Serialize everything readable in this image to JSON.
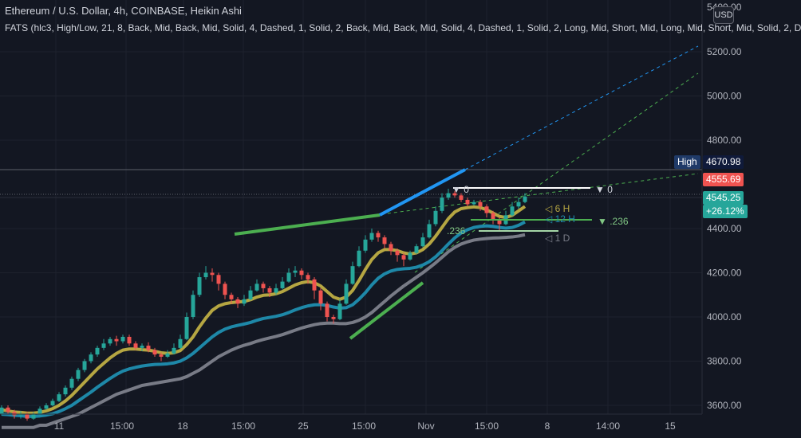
{
  "header": {
    "symbol_line": "Ethereum / U.S. Dollar, 4h, COINBASE, Heikin Ashi",
    "indicator_line": "FATS (hlc3, High/Low, 21, 8, Back, Mid, Back, Mid, Solid, 4, Dashed, 1, Solid, 2, Back, Mid, Back, Mid, Solid, 4, Dashed, 1, Solid, 2, Long, Mid, Short, Mid, Long, Mid, Short, Mid, Solid, 2, D"
  },
  "currency_button": "USD",
  "price_scale": {
    "labels": [
      "5200.00",
      "5000.00",
      "4800.00",
      "4400.00",
      "4200.00",
      "4000.00",
      "3800.00",
      "3600.00"
    ],
    "top_partial": "5400.00"
  },
  "time_axis": {
    "labels": [
      "11",
      "15:00",
      "18",
      "15:00",
      "25",
      "15:00",
      "Nov",
      "15:00",
      "8",
      "14:00",
      "15"
    ]
  },
  "price_tags": {
    "high_label": "High",
    "high_value": "4670.98",
    "prev_value": "4555.69",
    "last_value": "4545.25",
    "change_pct": "+26.12%"
  },
  "chart_labels": {
    "fib_0": "▼ 0",
    "fib_236": "▼ .236",
    "fib_236_left": ".236",
    "marker_0": "▼ 0",
    "tf_6h": "◁ 6 H",
    "tf_12h": "◁ 12 H",
    "tf_1d": "◁ 1 D"
  },
  "colors": {
    "background": "#131722",
    "up_candle": "#26a69a",
    "down_candle": "#ef5350",
    "ma_fast": "#b5a642",
    "ma_mid": "#1e88a8",
    "ma_slow": "#787b86",
    "trend_green": "#4caf50",
    "trend_blue": "#2196f3"
  },
  "chart_data": {
    "type": "candlestick",
    "timeframe": "4h",
    "y_axis_ticks": [
      3600,
      3800,
      4000,
      4200,
      4400,
      4800,
      5000,
      5200
    ],
    "ylim": [
      3590,
      5400
    ],
    "candles": [
      [
        3560,
        3590,
        3555,
        3600
      ],
      [
        3590,
        3570,
        3560,
        3600
      ],
      [
        3570,
        3555,
        3540,
        3580
      ],
      [
        3555,
        3560,
        3540,
        3575
      ],
      [
        3560,
        3540,
        3530,
        3570
      ],
      [
        3540,
        3560,
        3535,
        3570
      ],
      [
        3560,
        3585,
        3555,
        3595
      ],
      [
        3585,
        3600,
        3580,
        3610
      ],
      [
        3600,
        3620,
        3595,
        3630
      ],
      [
        3620,
        3650,
        3615,
        3660
      ],
      [
        3650,
        3680,
        3640,
        3690
      ],
      [
        3680,
        3720,
        3670,
        3730
      ],
      [
        3720,
        3760,
        3710,
        3770
      ],
      [
        3760,
        3800,
        3750,
        3810
      ],
      [
        3800,
        3830,
        3790,
        3840
      ],
      [
        3830,
        3860,
        3820,
        3870
      ],
      [
        3860,
        3880,
        3850,
        3900
      ],
      [
        3880,
        3900,
        3870,
        3910
      ],
      [
        3900,
        3890,
        3870,
        3915
      ],
      [
        3890,
        3910,
        3880,
        3920
      ],
      [
        3910,
        3880,
        3870,
        3920
      ],
      [
        3880,
        3860,
        3850,
        3890
      ],
      [
        3860,
        3870,
        3845,
        3880
      ],
      [
        3870,
        3850,
        3840,
        3885
      ],
      [
        3850,
        3830,
        3820,
        3860
      ],
      [
        3830,
        3820,
        3800,
        3840
      ],
      [
        3820,
        3835,
        3815,
        3850
      ],
      [
        3835,
        3860,
        3830,
        3880
      ],
      [
        3860,
        3900,
        3855,
        3920
      ],
      [
        3900,
        4000,
        3895,
        4020
      ],
      [
        4000,
        4100,
        3990,
        4120
      ],
      [
        4100,
        4180,
        4090,
        4200
      ],
      [
        4180,
        4200,
        4170,
        4230
      ],
      [
        4200,
        4190,
        4160,
        4220
      ],
      [
        4190,
        4150,
        4120,
        4200
      ],
      [
        4150,
        4100,
        4080,
        4160
      ],
      [
        4100,
        4080,
        4060,
        4110
      ],
      [
        4080,
        4060,
        4040,
        4090
      ],
      [
        4060,
        4080,
        4050,
        4100
      ],
      [
        4080,
        4120,
        4075,
        4140
      ],
      [
        4120,
        4150,
        4115,
        4170
      ],
      [
        4150,
        4130,
        4110,
        4160
      ],
      [
        4130,
        4110,
        4090,
        4140
      ],
      [
        4110,
        4130,
        4100,
        4150
      ],
      [
        4130,
        4160,
        4125,
        4180
      ],
      [
        4160,
        4200,
        4155,
        4220
      ],
      [
        4200,
        4210,
        4180,
        4230
      ],
      [
        4210,
        4190,
        4170,
        4220
      ],
      [
        4190,
        4170,
        4150,
        4200
      ],
      [
        4170,
        4120,
        4080,
        4180
      ],
      [
        4120,
        4060,
        4030,
        4130
      ],
      [
        4060,
        4000,
        3980,
        4070
      ],
      [
        4000,
        3990,
        3970,
        4010
      ],
      [
        3990,
        4060,
        3985,
        4080
      ],
      [
        4060,
        4150,
        4055,
        4170
      ],
      [
        4150,
        4230,
        4145,
        4250
      ],
      [
        4230,
        4300,
        4225,
        4320
      ],
      [
        4300,
        4350,
        4290,
        4370
      ],
      [
        4350,
        4380,
        4340,
        4400
      ],
      [
        4380,
        4360,
        4340,
        4390
      ],
      [
        4360,
        4330,
        4310,
        4370
      ],
      [
        4330,
        4300,
        4280,
        4340
      ],
      [
        4300,
        4280,
        4250,
        4310
      ],
      [
        4280,
        4260,
        4230,
        4290
      ],
      [
        4260,
        4290,
        4255,
        4300
      ],
      [
        4290,
        4320,
        4285,
        4330
      ],
      [
        4320,
        4360,
        4315,
        4380
      ],
      [
        4360,
        4420,
        4355,
        4440
      ],
      [
        4420,
        4480,
        4410,
        4500
      ],
      [
        4480,
        4540,
        4470,
        4560
      ],
      [
        4540,
        4560,
        4530,
        4580
      ],
      [
        4560,
        4550,
        4540,
        4570
      ],
      [
        4550,
        4530,
        4520,
        4560
      ],
      [
        4530,
        4510,
        4500,
        4540
      ],
      [
        4510,
        4520,
        4505,
        4530
      ],
      [
        4520,
        4500,
        4480,
        4530
      ],
      [
        4500,
        4470,
        4450,
        4510
      ],
      [
        4470,
        4440,
        4420,
        4480
      ],
      [
        4440,
        4420,
        4390,
        4450
      ],
      [
        4420,
        4460,
        4415,
        4480
      ],
      [
        4460,
        4500,
        4455,
        4520
      ],
      [
        4500,
        4520,
        4490,
        4540
      ],
      [
        4520,
        4545,
        4515,
        4560
      ]
    ],
    "series": [
      {
        "values": [
          3580,
          3575,
          3570,
          3568,
          3565,
          3565,
          3568,
          3575,
          3585,
          3600,
          3620,
          3645,
          3675,
          3705,
          3735,
          3765,
          3790,
          3815,
          3835,
          3850,
          3855,
          3855,
          3852,
          3850,
          3845,
          3838,
          3835,
          3838,
          3848,
          3875,
          3910,
          3955,
          3995,
          4030,
          4050,
          4060,
          4065,
          4068,
          4070,
          4078,
          4090,
          4098,
          4100,
          4105,
          4115,
          4130,
          4145,
          4155,
          4160,
          4155,
          4140,
          4115,
          4090,
          4080,
          4090,
          4120,
          4165,
          4215,
          4260,
          4290,
          4305,
          4305,
          4300,
          4290,
          4285,
          4290,
          4305,
          4330,
          4365,
          4405,
          4445,
          4475,
          4490,
          4495,
          4498,
          4495,
          4485,
          4470,
          4455,
          4450,
          4460,
          4480,
          4500
        ]
      },
      {
        "values": [
          3560,
          3558,
          3555,
          3553,
          3550,
          3550,
          3552,
          3556,
          3562,
          3572,
          3585,
          3600,
          3620,
          3640,
          3660,
          3682,
          3702,
          3722,
          3740,
          3755,
          3765,
          3772,
          3778,
          3782,
          3785,
          3786,
          3788,
          3792,
          3800,
          3815,
          3835,
          3860,
          3885,
          3910,
          3930,
          3945,
          3955,
          3962,
          3968,
          3975,
          3985,
          3993,
          3998,
          4003,
          4010,
          4020,
          4032,
          4042,
          4050,
          4055,
          4056,
          4052,
          4045,
          4040,
          4042,
          4055,
          4080,
          4110,
          4145,
          4175,
          4195,
          4208,
          4215,
          4218,
          4220,
          4225,
          4235,
          4250,
          4272,
          4300,
          4330,
          4358,
          4380,
          4395,
          4405,
          4410,
          4412,
          4410,
          4405,
          4402,
          4405,
          4415,
          4430
        ]
      },
      {
        "values": [
          3500,
          3500,
          3500,
          3500,
          3500,
          3500,
          3510,
          3510,
          3520,
          3530,
          3540,
          3550,
          3560,
          3575,
          3590,
          3605,
          3620,
          3635,
          3650,
          3660,
          3670,
          3680,
          3690,
          3695,
          3700,
          3705,
          3710,
          3715,
          3720,
          3730,
          3745,
          3760,
          3780,
          3800,
          3820,
          3835,
          3850,
          3862,
          3872,
          3880,
          3890,
          3898,
          3905,
          3912,
          3920,
          3930,
          3940,
          3950,
          3958,
          3965,
          3970,
          3972,
          3972,
          3970,
          3970,
          3975,
          3985,
          4000,
          4020,
          4045,
          4070,
          4095,
          4118,
          4140,
          4160,
          4180,
          4200,
          4222,
          4245,
          4270,
          4295,
          4315,
          4330,
          4340,
          4348,
          4352,
          4355,
          4357,
          4358,
          4360,
          4362,
          4366,
          4372
        ]
      }
    ],
    "trendlines": [
      {
        "from": [
          30,
          4380
        ],
        "to": [
          52,
          4460
        ],
        "color": "green"
      },
      {
        "from": [
          52,
          4460
        ],
        "to": [
          66,
          4580
        ],
        "color": "blue"
      },
      {
        "from": [
          42,
          3900
        ],
        "to": [
          54,
          4230
        ],
        "color": "green"
      }
    ],
    "horizontal_levels": [
      4670.98,
      4555.69,
      4545.25,
      4500,
      4440,
      4400
    ],
    "last_price": 4545.25
  }
}
